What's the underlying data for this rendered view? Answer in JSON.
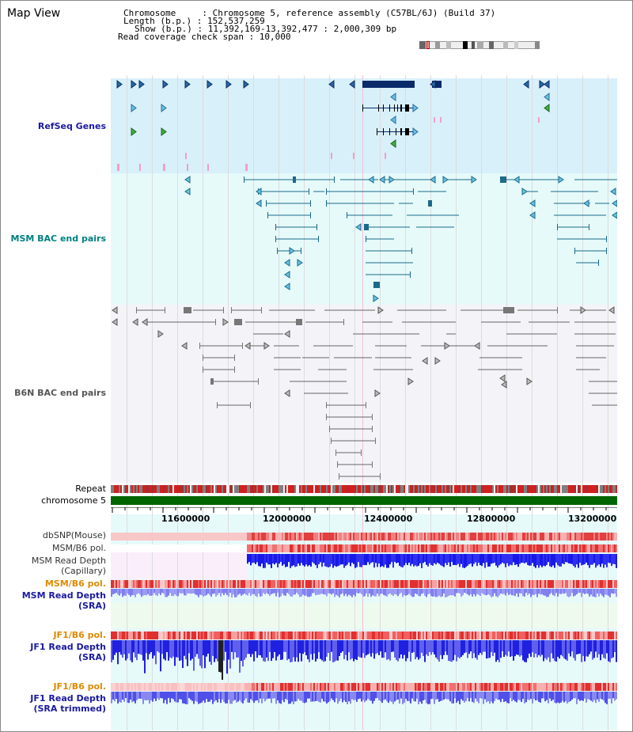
{
  "page": {
    "title": "Map View"
  },
  "info": {
    "chromosome_line": "Chromosome     : Chromosome 5, reference assembly (C57BL/6J) (Build 37)",
    "length_line": "Length (b.p.) : 152,537,259",
    "show_line": "Show (b.p.) : 11,392,169-13,392,477 : 2,000,309 bp",
    "coverage_line": "Read coverage check span : 10,000"
  },
  "tracks": {
    "refseq": "RefSeq Genes",
    "msm_bac": "MSM BAC end pairs",
    "b6n_bac": "B6N BAC end pairs",
    "repeat": "Repeat",
    "chromosome": "chromosome 5",
    "dbsnp": "dbSNP(Mouse)",
    "msm_b6_pol": "MSM/B6 pol.",
    "msm_depth_cap_1": "MSM Read Depth",
    "msm_depth_cap_2": "(Capillary)",
    "msm_b6_pol_2": "MSM/B6 pol.",
    "msm_depth_sra_1": "MSM Read Depth",
    "msm_depth_sra_2": "(SRA)",
    "jf1_b6_pol": "JF1/B6 pol.",
    "jf1_depth_sra_1": "JF1 Read Depth",
    "jf1_depth_sra_2": "(SRA)",
    "jf1_b6_pol_2": "JF1/B6 pol.",
    "jf1_depth_trim_1": "JF1 Read Depth",
    "jf1_depth_trim_2": "(SRA trimmed)"
  },
  "axis": {
    "ticks": [
      "11600000",
      "12000000",
      "12400000",
      "12800000",
      "13200000"
    ]
  },
  "colors": {
    "refseq_bg": "#d8f0fa",
    "msm_bg": "#e6fafa",
    "b6n_bg": "#f4f4f8",
    "navy": "#1a1aa0",
    "teal": "#008080",
    "chromosome_green": "#006400",
    "depth_blue": "#2020e0",
    "pol_red": "#e03030"
  }
}
